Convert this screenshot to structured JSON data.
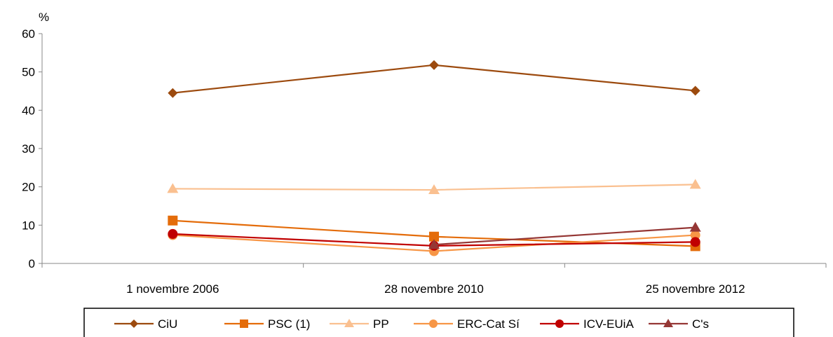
{
  "chart_data": {
    "type": "line",
    "ylabel": "%",
    "ylim": [
      0,
      60
    ],
    "yticks": [
      0,
      10,
      20,
      30,
      40,
      50,
      60
    ],
    "categories": [
      "1 novembre 2006",
      "28 novembre 2010",
      "25 novembre 2012"
    ],
    "legend_position": "bottom",
    "grid": false,
    "series": [
      {
        "name": "CiU",
        "values": [
          44.5,
          51.8,
          45.1
        ],
        "color": "#9C4A0E",
        "marker": "diamond"
      },
      {
        "name": "PSC (1)",
        "values": [
          11.2,
          7.0,
          4.5
        ],
        "color": "#E46C0A",
        "marker": "square"
      },
      {
        "name": "PP",
        "values": [
          19.5,
          19.2,
          20.6
        ],
        "color": "#FAC090",
        "marker": "triangle"
      },
      {
        "name": "ERC-Cat Sí",
        "values": [
          7.4,
          3.2,
          7.4
        ],
        "color": "#F79646",
        "marker": "circle"
      },
      {
        "name": "ICV-EUiA",
        "values": [
          7.7,
          4.6,
          5.6
        ],
        "color": "#C00000",
        "marker": "circle"
      },
      {
        "name": "C's",
        "values": [
          null,
          4.9,
          9.4
        ],
        "color": "#953735",
        "marker": "triangle"
      }
    ]
  }
}
